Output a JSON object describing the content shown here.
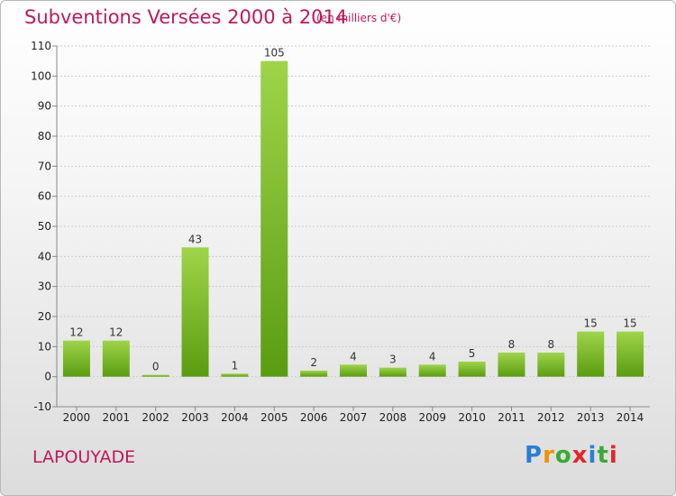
{
  "header": {
    "title": "Subventions Versées 2000 à 2014",
    "unit": "(en milliers d'€)"
  },
  "footer": {
    "commune": "LAPOUYADE",
    "logo_text": "Proxiti"
  },
  "colors": {
    "title": "#c0185e",
    "bar_light": "#9fd44a",
    "bar_dark": "#5a9c10",
    "grid": "#cccccc",
    "logo": [
      "#2a7fd4",
      "#f29100",
      "#3aaa35",
      "#e5252a",
      "#2a7fd4",
      "#3aaa35",
      "#e5252a"
    ]
  },
  "chart_data": {
    "type": "bar",
    "title": "Subventions Versées 2000 à 2014",
    "subtitle": "(en milliers d'€)",
    "categories": [
      "2000",
      "2001",
      "2002",
      "2003",
      "2004",
      "2005",
      "2006",
      "2007",
      "2008",
      "2009",
      "2010",
      "2011",
      "2012",
      "2013",
      "2014"
    ],
    "values": [
      12,
      12,
      0,
      43,
      1,
      105,
      2,
      4,
      3,
      4,
      5,
      8,
      8,
      15,
      15
    ],
    "data_labels": [
      "12",
      "12",
      "0",
      "43",
      "1",
      "105",
      "2",
      "4",
      "3",
      "4",
      "5",
      "8",
      "8",
      "15",
      "15"
    ],
    "ylim": [
      -10,
      110
    ],
    "yticks": [
      -10,
      0,
      10,
      20,
      30,
      40,
      50,
      60,
      70,
      80,
      90,
      100,
      110
    ],
    "xlabel": "",
    "ylabel": "",
    "grid": true,
    "legend": "none"
  }
}
